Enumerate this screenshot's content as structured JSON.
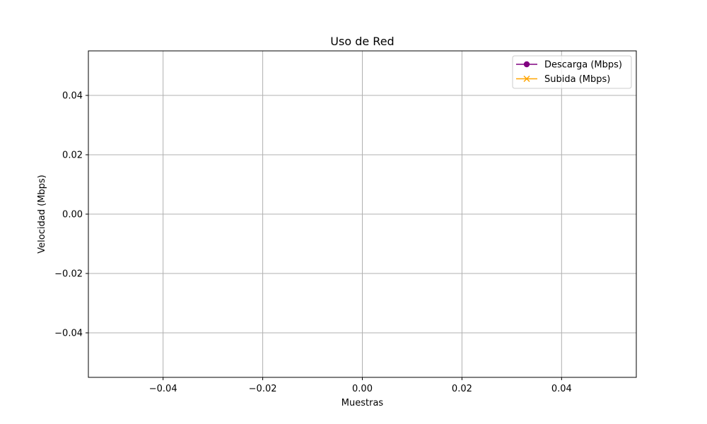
{
  "chart_data": {
    "type": "line",
    "title": "Uso de Red",
    "xlabel": "Muestras",
    "ylabel": "Velocidad (Mbps)",
    "xlim": [
      -0.055,
      0.055
    ],
    "ylim": [
      -0.055,
      0.055
    ],
    "x_ticks": [
      -0.04,
      -0.02,
      0.0,
      0.02,
      0.04
    ],
    "y_ticks": [
      -0.04,
      -0.02,
      0.0,
      0.02,
      0.04
    ],
    "x_tick_labels": [
      "−0.04",
      "−0.02",
      "0.00",
      "0.02",
      "0.04"
    ],
    "y_tick_labels": [
      "−0.04",
      "−0.02",
      "0.00",
      "0.02",
      "0.04"
    ],
    "grid": true,
    "legend_position": "top-right",
    "x": [],
    "series": [
      {
        "name": "Descarga (Mbps)",
        "values": [],
        "color": "#800080",
        "marker": "circle"
      },
      {
        "name": "Subida (Mbps)",
        "values": [],
        "color": "#ffa500",
        "marker": "x"
      }
    ]
  }
}
